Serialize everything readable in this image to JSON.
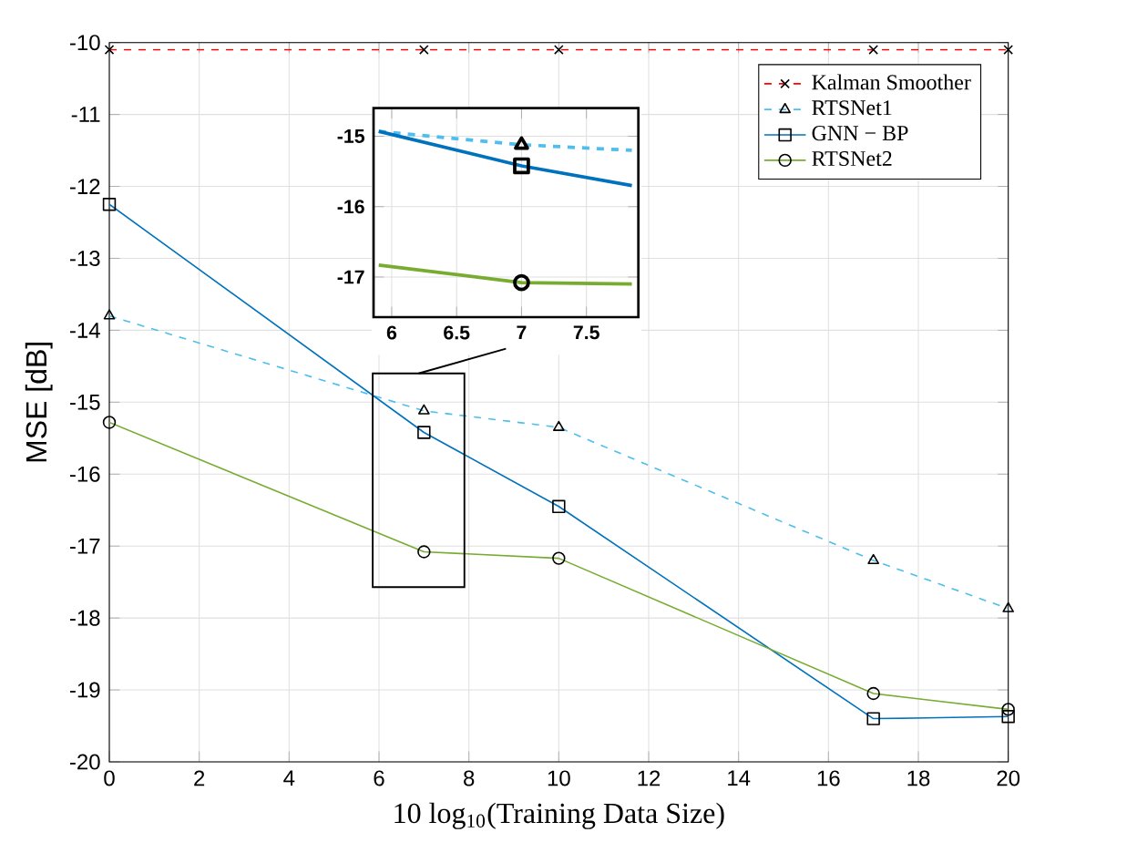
{
  "chart_data": [
    {
      "type": "line",
      "xlabel": "10 log$_{10}$(Training Data Size)",
      "ylabel": "MSE [dB]",
      "xlim": [
        0,
        20
      ],
      "ylim": [
        -20,
        -10
      ],
      "xticks": [
        0,
        2,
        4,
        6,
        8,
        10,
        12,
        14,
        16,
        18,
        20
      ],
      "yticks": [
        -20,
        -19,
        -18,
        -17,
        -16,
        -15,
        -14,
        -13,
        -12,
        -11,
        -10
      ],
      "grid": true,
      "legend": "top right",
      "series": [
        {
          "name": "Kalman Smoother",
          "color": "#ff0000",
          "marker": "cross",
          "line_style": "dashed",
          "x": [
            0,
            7,
            10,
            17,
            20
          ],
          "values": [
            -10.1,
            -10.1,
            -10.1,
            -10.1,
            -10.1
          ]
        },
        {
          "name": "RTSNet1",
          "color": "#4dbeee",
          "marker": "triangle",
          "line_style": "dashed",
          "x": [
            0,
            7,
            10,
            17,
            20
          ],
          "values": [
            -13.8,
            -15.12,
            -15.35,
            -17.2,
            -17.87
          ]
        },
        {
          "name": "GNN − BP",
          "color": "#0072bd",
          "marker": "square",
          "line_style": "solid",
          "x": [
            0,
            7,
            10,
            17,
            20
          ],
          "values": [
            -12.25,
            -15.42,
            -16.45,
            -19.4,
            -19.37
          ]
        },
        {
          "name": "RTSNet2",
          "color": "#77ac30",
          "marker": "circle",
          "line_style": "solid",
          "x": [
            0,
            7,
            10,
            17,
            20
          ],
          "values": [
            -15.28,
            -17.08,
            -17.17,
            -19.05,
            -19.27
          ]
        }
      ]
    },
    {
      "type": "line",
      "xlim": [
        5.86,
        7.9
      ],
      "ylim": [
        -17.57,
        -14.6
      ],
      "xticks": [
        6,
        6.5,
        7,
        7.5
      ],
      "yticks": [
        -17,
        -16,
        -15
      ],
      "grid": true,
      "series": [
        {
          "color": "#4dbeee",
          "line_style": "dashed",
          "x": [
            5.9,
            7,
            7.85
          ],
          "values": [
            -14.93,
            -15.12,
            -15.2
          ]
        },
        {
          "color": "#0072bd",
          "line_style": "solid",
          "x": [
            5.9,
            7,
            7.85
          ],
          "values": [
            -14.93,
            -15.42,
            -15.7
          ]
        },
        {
          "color": "#77ac30",
          "line_style": "solid",
          "x": [
            5.9,
            7,
            7.85
          ],
          "values": [
            -16.83,
            -17.08,
            -17.1
          ]
        },
        {
          "type": "scatter",
          "color": "#000000",
          "marker": "triangle",
          "x": [
            7
          ],
          "values": [
            -15.12
          ]
        },
        {
          "type": "scatter",
          "color": "#000000",
          "marker": "square",
          "x": [
            7
          ],
          "values": [
            -15.42
          ]
        },
        {
          "type": "scatter",
          "color": "#000000",
          "marker": "circle",
          "x": [
            7
          ],
          "values": [
            -17.08
          ]
        }
      ]
    }
  ]
}
